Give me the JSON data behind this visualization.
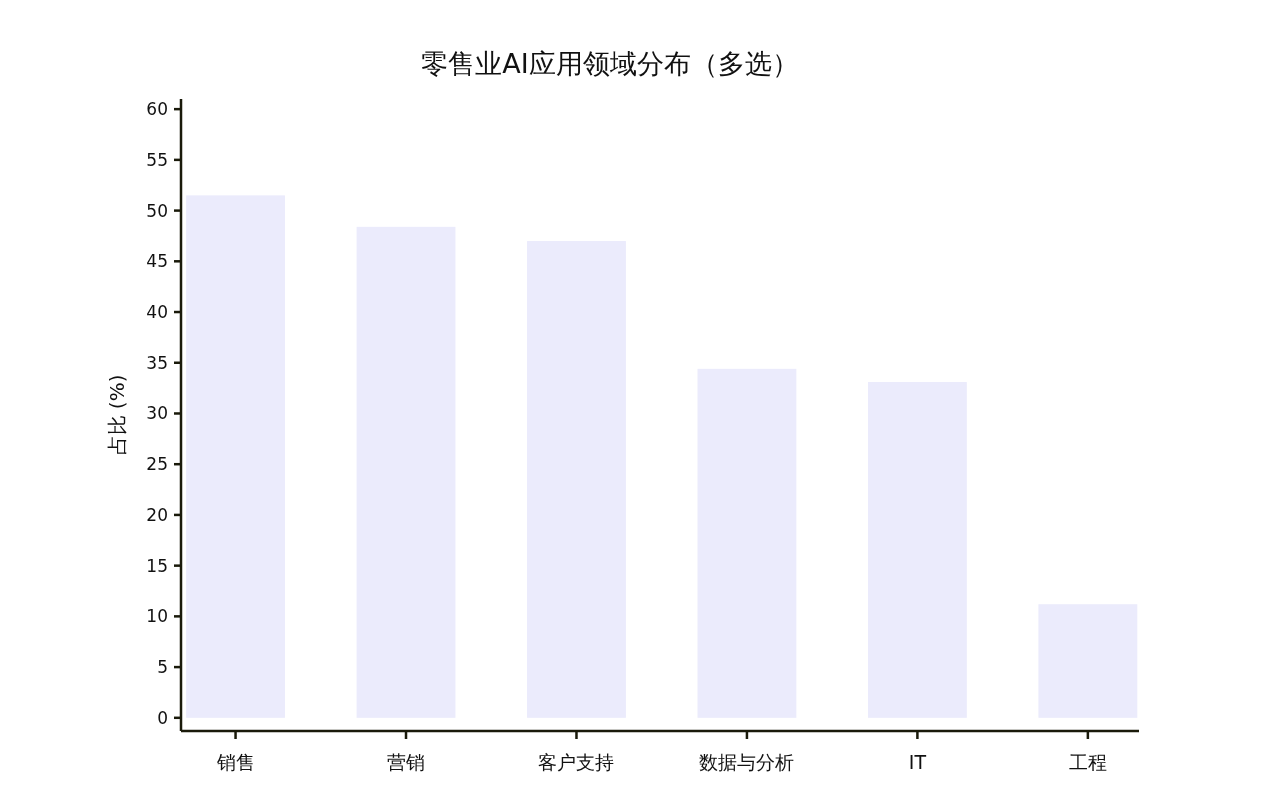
{
  "chart_data": {
    "type": "bar",
    "title": "零售业AI应用领域分布（多选）",
    "ylabel": "占比 (%)",
    "categories": [
      "销售",
      "营销",
      "客户支持",
      "数据与分析",
      "IT",
      "工程"
    ],
    "values": [
      51.5,
      48.4,
      47.0,
      34.4,
      33.1,
      11.2
    ],
    "color": "#ebebfc",
    "ylim": [
      -1.3,
      61
    ],
    "yticks": [
      0,
      5,
      10,
      15,
      20,
      25,
      30,
      35,
      40,
      45,
      50,
      55,
      60
    ],
    "grid": false
  }
}
